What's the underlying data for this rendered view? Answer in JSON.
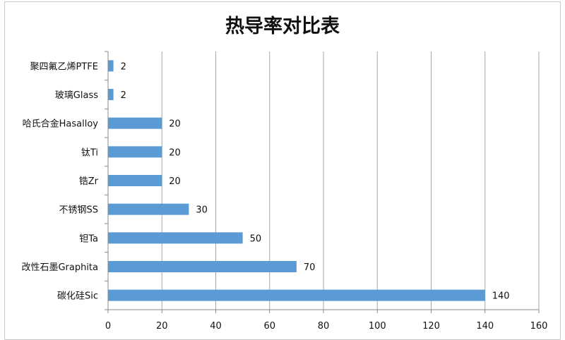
{
  "chart_data": {
    "type": "bar",
    "orientation": "horizontal",
    "title": "热导率对比表",
    "categories": [
      "聚四氟乙烯PTFE",
      "玻璃Glass",
      "哈氏合金Hasalloy",
      "钛Ti",
      "锆Zr",
      "不锈钢SS",
      "钽Ta",
      "改性石墨Graphita",
      "碳化硅Sic"
    ],
    "values": [
      2,
      2,
      20,
      20,
      20,
      30,
      50,
      70,
      140
    ],
    "xlim": [
      0,
      160
    ],
    "xticks": [
      0,
      20,
      40,
      60,
      80,
      100,
      120,
      140,
      160
    ],
    "grid": true,
    "data_labels": true,
    "bar_color": "#5b9bd5",
    "xlabel": "",
    "ylabel": ""
  }
}
